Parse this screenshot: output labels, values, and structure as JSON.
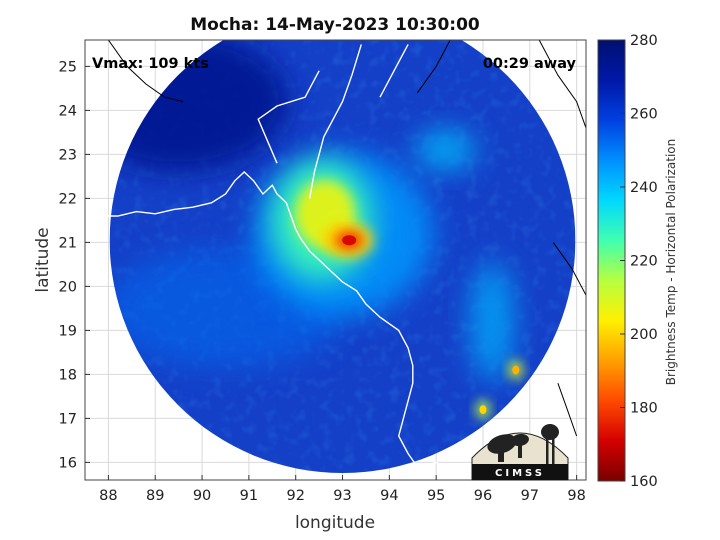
{
  "chart_data": {
    "type": "heatmap",
    "title": "Mocha: 14-May-2023 10:30:00",
    "xlabel": "longitude",
    "ylabel": "latitude",
    "xlim": [
      87.5,
      98.2
    ],
    "ylim": [
      15.6,
      25.6
    ],
    "x_ticks": [
      88,
      89,
      90,
      91,
      92,
      93,
      94,
      95,
      96,
      97,
      98
    ],
    "y_ticks": [
      16,
      17,
      18,
      19,
      20,
      21,
      22,
      23,
      24,
      25
    ],
    "grid": true,
    "swath": {
      "center_lon": 93.0,
      "center_lat": 21.05,
      "radius_deg": 5.4
    },
    "storm_center": {
      "lon": 93.1,
      "lat": 21.05,
      "min_brightness_temp": 172
    },
    "warm_spots": [
      {
        "lon": 96.7,
        "lat": 18.1,
        "brightness_temp": 195
      },
      {
        "lon": 96.0,
        "lat": 17.2,
        "brightness_temp": 200
      }
    ],
    "annotations": {
      "vmax": "Vmax: 109 kts",
      "time_offset": "00:29 away"
    },
    "colorbar": {
      "label": "Brightness Temp - Horizontal Polarization",
      "min": 160,
      "max": 280,
      "ticks": [
        160,
        180,
        200,
        220,
        240,
        260,
        280
      ],
      "colormap": [
        "#7a0000",
        "#d40000",
        "#ff4a00",
        "#ffa000",
        "#fff000",
        "#b6ff40",
        "#40ffb0",
        "#00d8ff",
        "#0090ff",
        "#0040e0",
        "#0018a8",
        "#001070"
      ]
    },
    "background_color": "#1440c8"
  },
  "logo": {
    "text": "CIMSS"
  }
}
